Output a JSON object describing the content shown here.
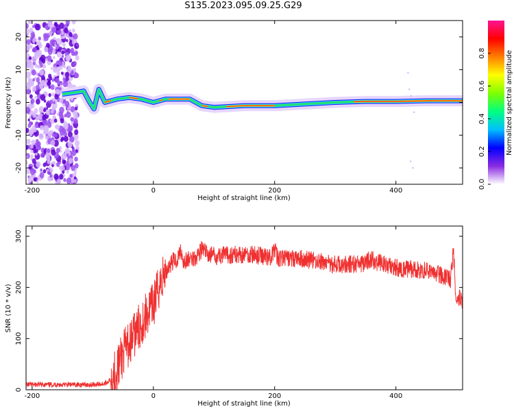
{
  "title": "S135.2023.095.09.25.G29",
  "chart_data": [
    {
      "type": "heatmap",
      "id": "spectrogram",
      "xlabel": "Height of straight line (km)",
      "ylabel": "Frequency (Hz)",
      "xlim": [
        -210,
        510
      ],
      "ylim": [
        -25,
        25
      ],
      "xticks": [
        -200,
        0,
        200,
        400
      ],
      "yticks": [
        -20,
        -10,
        0,
        10,
        20
      ],
      "colorbar": {
        "label": "Normalized spectral amplitude",
        "range": [
          0,
          1
        ],
        "ticks": [
          0.0,
          0.2,
          0.4,
          0.6,
          0.8
        ],
        "colors": [
          "#ffffff",
          "#8a2be2",
          "#0000ff",
          "#00bfff",
          "#00ff7f",
          "#7fff00",
          "#ffff00",
          "#ff7f00",
          "#ff0000",
          "#ff1493"
        ]
      },
      "ridge": [
        {
          "x": -150,
          "y": 2.5
        },
        {
          "x": -130,
          "y": 3
        },
        {
          "x": -115,
          "y": 3.5
        },
        {
          "x": -105,
          "y": 0
        },
        {
          "x": -98,
          "y": -2
        },
        {
          "x": -90,
          "y": 4
        },
        {
          "x": -80,
          "y": 0
        },
        {
          "x": -60,
          "y": 1
        },
        {
          "x": -40,
          "y": 1.5
        },
        {
          "x": -20,
          "y": 1
        },
        {
          "x": 0,
          "y": 0
        },
        {
          "x": 20,
          "y": 1
        },
        {
          "x": 40,
          "y": 1
        },
        {
          "x": 60,
          "y": 1
        },
        {
          "x": 80,
          "y": -1
        },
        {
          "x": 100,
          "y": -1.5
        },
        {
          "x": 150,
          "y": -1
        },
        {
          "x": 200,
          "y": -1
        },
        {
          "x": 250,
          "y": -0.5
        },
        {
          "x": 300,
          "y": 0
        },
        {
          "x": 350,
          "y": 0.3
        },
        {
          "x": 400,
          "y": 0.3
        },
        {
          "x": 450,
          "y": 0.5
        },
        {
          "x": 510,
          "y": 0.5
        }
      ]
    },
    {
      "type": "line",
      "id": "snr",
      "xlabel": "Height of straight line (km)",
      "ylabel": "SNR (10 * v/v)",
      "xlim": [
        -210,
        510
      ],
      "ylim": [
        0,
        320
      ],
      "xticks": [
        -200,
        0,
        200,
        400
      ],
      "yticks": [
        0,
        100,
        200,
        300
      ],
      "color": "#f03030",
      "series": [
        {
          "x": [
            -210,
            -150,
            -100,
            -80,
            -70,
            -60,
            -50,
            -40,
            -30,
            -20,
            -10,
            0,
            10,
            20,
            30,
            40,
            45,
            50,
            60,
            70,
            80,
            90,
            100,
            150,
            195,
            200,
            205,
            250,
            300,
            350,
            355,
            400,
            450,
            480,
            490,
            495,
            500,
            505,
            510
          ],
          "y": [
            10,
            10,
            10,
            12,
            20,
            40,
            70,
            90,
            110,
            130,
            150,
            165,
            205,
            230,
            250,
            255,
            275,
            250,
            255,
            260,
            275,
            265,
            262,
            265,
            260,
            275,
            258,
            255,
            245,
            245,
            255,
            238,
            232,
            222,
            215,
            270,
            160,
            180,
            175
          ]
        }
      ]
    }
  ]
}
